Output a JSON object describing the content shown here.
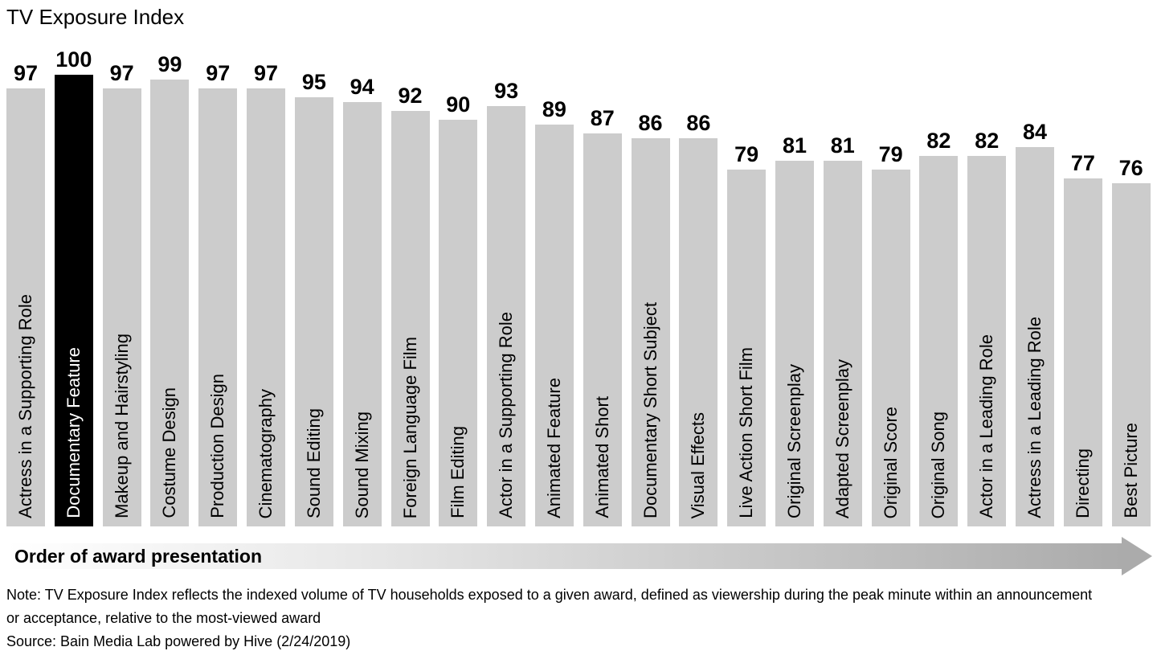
{
  "title": "TV Exposure Index",
  "chart_data": {
    "type": "bar",
    "title": "TV Exposure Index",
    "xlabel": "Order of award presentation",
    "ylabel": "TV Exposure Index",
    "ylim": [
      0,
      100
    ],
    "grid": false,
    "legend": false,
    "bar_color": "#cccccc",
    "highlight_color": "#000000",
    "highlight_index": 1,
    "highlight_category": "Documentary Feature",
    "categories": [
      "Actress in a Supporting Role",
      "Documentary Feature",
      "Makeup and Hairstyling",
      "Costume Design",
      "Production Design",
      "Cinematography",
      "Sound Editing",
      "Sound Mixing",
      "Foreign Language Film",
      "Film Editing",
      "Actor in a Supporting Role",
      "Animated Feature",
      "Animated Short",
      "Documentary Short Subject",
      "Visual Effects",
      "Live Action Short Film",
      "Original Screenplay",
      "Adapted Screenplay",
      "Original Score",
      "Original Song",
      "Actor in a Leading Role",
      "Actress in a Leading Role",
      "Directing",
      "Best Picture"
    ],
    "values": [
      97,
      100,
      97,
      99,
      97,
      97,
      95,
      94,
      92,
      90,
      93,
      89,
      87,
      86,
      86,
      79,
      81,
      81,
      79,
      82,
      82,
      84,
      77,
      76
    ]
  },
  "axis": {
    "label": "Order of award presentation",
    "arrow_icon": "arrow-right-icon"
  },
  "footer": {
    "note": "Note: TV Exposure Index reflects the indexed volume of TV households exposed to a given award, defined as viewership during the peak minute within an announcement or acceptance, relative to the most-viewed award",
    "source": "Source: Bain Media Lab powered by Hive (2/24/2019)"
  }
}
